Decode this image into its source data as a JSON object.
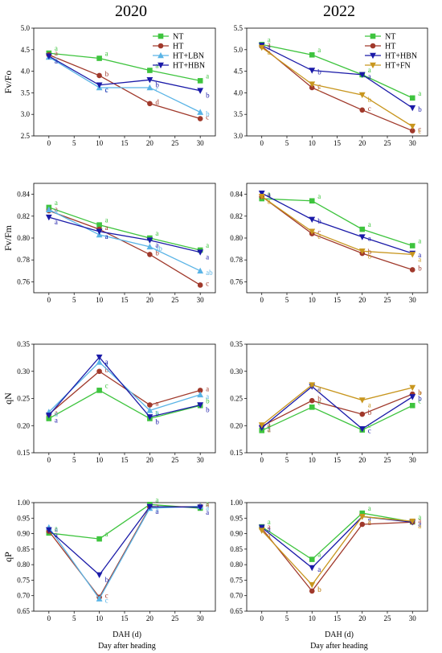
{
  "col_titles": [
    "2020",
    "2022"
  ],
  "x_label_dah": "DAH (d)",
  "x_label_day": "Day after heading",
  "colors": {
    "NT": "#3ec43e",
    "HT": "#a0392b",
    "HT+LBN": "#5ab4e6",
    "HT+HBN": "#1a1aa8",
    "HT+FN": "#c8961e"
  },
  "chart_data": [
    {
      "type": "line",
      "id": "fvfo-2020",
      "year": "2020",
      "ylabel": "Fv/Fo",
      "xlabel": "",
      "x": [
        0,
        10,
        20,
        30
      ],
      "xticks": [
        0,
        5,
        10,
        15,
        20,
        25,
        30
      ],
      "ylim": [
        2.5,
        5.0
      ],
      "yticks": [
        "2.5",
        "3.0",
        "3.5",
        "4.0",
        "4.5",
        "5.0"
      ],
      "legend": "top-right",
      "series": [
        {
          "name": "NT",
          "values": [
            4.42,
            4.3,
            4.02,
            3.78
          ],
          "letters": [
            "a",
            "a",
            "a",
            "a"
          ]
        },
        {
          "name": "HT",
          "values": [
            4.38,
            3.9,
            3.25,
            2.9
          ],
          "letters": [
            "a",
            "b",
            "d",
            "c"
          ]
        },
        {
          "name": "HT+LBN",
          "values": [
            4.33,
            3.62,
            3.62,
            3.05
          ],
          "letters": [
            "a",
            "c",
            "c",
            "b"
          ]
        },
        {
          "name": "HT+HBN",
          "values": [
            4.35,
            3.68,
            3.8,
            3.55
          ],
          "letters": [
            "a",
            "c",
            "b",
            "b"
          ]
        }
      ]
    },
    {
      "type": "line",
      "id": "fvfo-2022",
      "year": "2022",
      "ylabel": "",
      "xlabel": "",
      "x": [
        0,
        10,
        20,
        30
      ],
      "xticks": [
        0,
        5,
        10,
        15,
        20,
        25,
        30
      ],
      "ylim": [
        3.0,
        5.5
      ],
      "yticks": [
        "3.0",
        "3.5",
        "4.0",
        "4.5",
        "5.0",
        "5.5"
      ],
      "legend": "top-right",
      "series": [
        {
          "name": "NT",
          "values": [
            5.12,
            4.88,
            4.42,
            3.88
          ],
          "letters": [
            "a",
            "a",
            "a",
            "a"
          ]
        },
        {
          "name": "HT",
          "values": [
            5.08,
            4.12,
            3.6,
            3.12
          ],
          "letters": [
            "a",
            "c",
            "c",
            "c"
          ]
        },
        {
          "name": "HT+HBN",
          "values": [
            5.1,
            4.52,
            4.42,
            3.65
          ],
          "letters": [
            "a",
            "b",
            "a",
            "b"
          ]
        },
        {
          "name": "HT+FN",
          "values": [
            5.05,
            4.2,
            3.95,
            3.22
          ],
          "letters": [
            "a",
            "c",
            "b",
            "c"
          ]
        }
      ]
    },
    {
      "type": "line",
      "id": "fvfm-2020",
      "year": "2020",
      "ylabel": "Fv/Fm",
      "xlabel": "",
      "x": [
        0,
        10,
        20,
        30
      ],
      "xticks": [
        0,
        5,
        10,
        15,
        20,
        25,
        30
      ],
      "ylim": [
        0.75,
        0.85
      ],
      "yticks": [
        "0.76",
        "0.78",
        "0.80",
        "0.82",
        "0.84"
      ],
      "series": [
        {
          "name": "NT",
          "values": [
            0.828,
            0.812,
            0.8,
            0.789
          ],
          "letters": [
            "a",
            "a",
            "a",
            "a"
          ]
        },
        {
          "name": "HT",
          "values": [
            0.825,
            0.808,
            0.785,
            0.757
          ],
          "letters": [
            "a",
            "a",
            "b",
            "c"
          ]
        },
        {
          "name": "HT+LBN",
          "values": [
            0.826,
            0.803,
            0.792,
            0.77
          ],
          "letters": [
            "a",
            "a",
            "ab",
            "ab"
          ]
        },
        {
          "name": "HT+HBN",
          "values": [
            0.819,
            0.806,
            0.798,
            0.787
          ],
          "letters": [
            "a",
            "a",
            "a",
            "a"
          ]
        }
      ]
    },
    {
      "type": "line",
      "id": "fvfm-2022",
      "year": "2022",
      "ylabel": "",
      "xlabel": "",
      "x": [
        0,
        10,
        20,
        30
      ],
      "xticks": [
        0,
        5,
        10,
        15,
        20,
        25,
        30
      ],
      "ylim": [
        0.75,
        0.85
      ],
      "yticks": [
        "0.76",
        "0.78",
        "0.80",
        "0.82",
        "0.84"
      ],
      "series": [
        {
          "name": "NT",
          "values": [
            0.836,
            0.834,
            0.808,
            0.793
          ],
          "letters": [
            "a",
            "a",
            "a",
            "a"
          ]
        },
        {
          "name": "HT",
          "values": [
            0.838,
            0.804,
            0.786,
            0.771
          ],
          "letters": [
            "a",
            "c",
            "b",
            "b"
          ]
        },
        {
          "name": "HT+HBN",
          "values": [
            0.841,
            0.817,
            0.801,
            0.786
          ],
          "letters": [
            "a",
            "b",
            "a",
            "a"
          ]
        },
        {
          "name": "HT+FN",
          "values": [
            0.838,
            0.806,
            0.788,
            0.785
          ],
          "letters": [
            "a",
            "c",
            "b",
            "a"
          ]
        }
      ]
    },
    {
      "type": "line",
      "id": "qn-2020",
      "year": "2020",
      "ylabel": "qN",
      "xlabel": "",
      "x": [
        0,
        10,
        20,
        30
      ],
      "xticks": [
        0,
        5,
        10,
        15,
        20,
        25,
        30
      ],
      "ylim": [
        0.15,
        0.35
      ],
      "yticks": [
        "0.15",
        "0.20",
        "0.25",
        "0.30",
        "0.35"
      ],
      "series": [
        {
          "name": "NT",
          "values": [
            0.213,
            0.265,
            0.213,
            0.237
          ],
          "letters": [
            "a",
            "c",
            "b",
            "b"
          ]
        },
        {
          "name": "HT",
          "values": [
            0.221,
            0.3,
            0.238,
            0.265
          ],
          "letters": [
            "a",
            "b",
            "a",
            "a"
          ]
        },
        {
          "name": "HT+LBN",
          "values": [
            0.225,
            0.317,
            0.228,
            0.257
          ],
          "letters": [
            "a",
            "a",
            "a",
            "a"
          ]
        },
        {
          "name": "HT+HBN",
          "values": [
            0.219,
            0.326,
            0.216,
            0.238
          ],
          "letters": [
            "a",
            "a",
            "b",
            "b"
          ]
        }
      ]
    },
    {
      "type": "line",
      "id": "qn-2022",
      "year": "2022",
      "ylabel": "",
      "xlabel": "",
      "x": [
        0,
        10,
        20,
        30
      ],
      "xticks": [
        0,
        5,
        10,
        15,
        20,
        25,
        30
      ],
      "ylim": [
        0.15,
        0.35
      ],
      "yticks": [
        "0.15",
        "0.20",
        "0.25",
        "0.30",
        "0.35"
      ],
      "series": [
        {
          "name": "NT",
          "values": [
            0.191,
            0.234,
            0.192,
            0.237
          ],
          "letters": [
            "a",
            "c",
            "c",
            "c"
          ]
        },
        {
          "name": "HT",
          "values": [
            0.199,
            0.246,
            0.221,
            0.258
          ],
          "letters": [
            "a",
            "b",
            "b",
            "b"
          ]
        },
        {
          "name": "HT+HBN",
          "values": [
            0.196,
            0.272,
            0.194,
            0.253
          ],
          "letters": [
            "a",
            "a",
            "c",
            "b"
          ]
        },
        {
          "name": "HT+FN",
          "values": [
            0.201,
            0.275,
            0.247,
            0.27
          ],
          "letters": [
            "a",
            "a",
            "a",
            "a"
          ]
        }
      ]
    },
    {
      "type": "line",
      "id": "qp-2020",
      "year": "2020",
      "ylabel": "qP",
      "xlabel": "DAH (d)",
      "x": [
        0,
        10,
        20,
        30
      ],
      "xticks": [
        0,
        5,
        10,
        15,
        20,
        25,
        30
      ],
      "ylim": [
        0.65,
        1.0
      ],
      "yticks": [
        "0.65",
        "0.70",
        "0.75",
        "0.80",
        "0.85",
        "0.90",
        "0.95",
        "1.00"
      ],
      "series": [
        {
          "name": "NT",
          "values": [
            0.902,
            0.883,
            0.994,
            0.982
          ],
          "letters": [
            "a",
            "a",
            "a",
            "a"
          ]
        },
        {
          "name": "HT",
          "values": [
            0.908,
            0.695,
            0.985,
            0.988
          ],
          "letters": [
            "a",
            "c",
            "a",
            "a"
          ]
        },
        {
          "name": "HT+LBN",
          "values": [
            0.92,
            0.69,
            0.982,
            0.988
          ],
          "letters": [
            "a",
            "c",
            "a",
            "a"
          ]
        },
        {
          "name": "HT+HBN",
          "values": [
            0.912,
            0.767,
            0.987,
            0.985
          ],
          "letters": [
            "a",
            "b",
            "a",
            "a"
          ]
        }
      ]
    },
    {
      "type": "line",
      "id": "qp-2022",
      "year": "2022",
      "ylabel": "",
      "xlabel": "DAH (d)",
      "x": [
        0,
        10,
        20,
        30
      ],
      "xticks": [
        0,
        5,
        10,
        15,
        20,
        25,
        30
      ],
      "ylim": [
        0.65,
        1.0
      ],
      "yticks": [
        "0.65",
        "0.70",
        "0.75",
        "0.80",
        "0.85",
        "0.90",
        "0.95",
        "1.00"
      ],
      "series": [
        {
          "name": "NT",
          "values": [
            0.922,
            0.817,
            0.966,
            0.938
          ],
          "letters": [
            "a",
            "a",
            "a",
            "a"
          ]
        },
        {
          "name": "HT",
          "values": [
            0.917,
            0.715,
            0.93,
            0.937
          ],
          "letters": [
            "a",
            "b",
            "a",
            "a"
          ]
        },
        {
          "name": "HT+HBN",
          "values": [
            0.92,
            0.79,
            0.955,
            0.937
          ],
          "letters": [
            "a",
            "a",
            "a",
            "a"
          ]
        },
        {
          "name": "HT+FN",
          "values": [
            0.91,
            0.735,
            0.955,
            0.94
          ],
          "letters": [
            "a",
            "b",
            "a",
            "a"
          ]
        }
      ]
    }
  ]
}
